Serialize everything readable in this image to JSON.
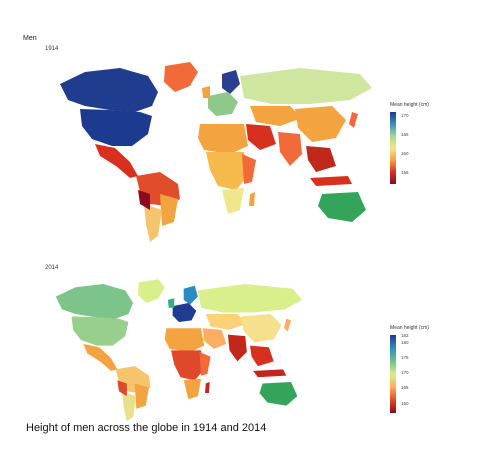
{
  "heading": "Men",
  "caption": "Height of men across the globe in 1914 and 2014",
  "panels": [
    {
      "year": "1914",
      "legend_title": "Mean height (cm)",
      "legend_ticks": [
        "170",
        "165",
        "160",
        "155"
      ],
      "legend_colors": [
        "#1f3c8f",
        "#3a8fb7",
        "#a6d596",
        "#f0e68c",
        "#f4a341",
        "#d7301f",
        "#8b0a1f"
      ]
    },
    {
      "year": "2014",
      "legend_title": "Mean height (cm)",
      "legend_ticks": [
        "182",
        "180",
        "175",
        "170",
        "165",
        "160"
      ],
      "legend_colors": [
        "#1f3c8f",
        "#2b8cbe",
        "#6cc08b",
        "#d9ef8b",
        "#fdae61",
        "#e0482c",
        "#8b0a1f"
      ]
    }
  ]
}
